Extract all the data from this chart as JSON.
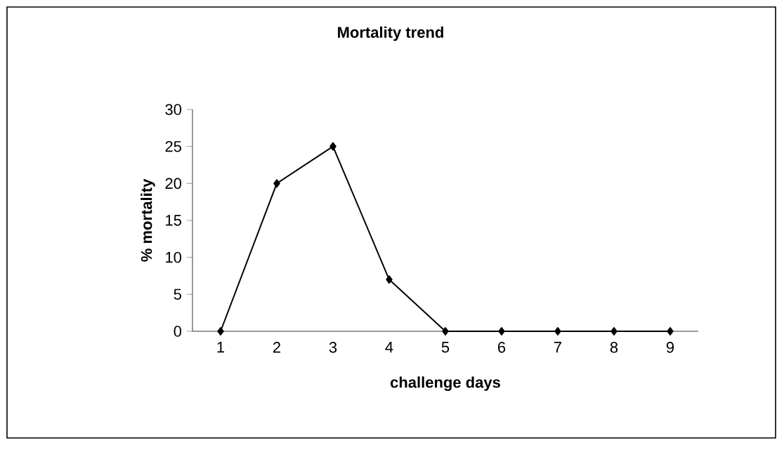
{
  "chart_data": {
    "type": "line",
    "title": "Mortality trend",
    "xlabel": "challenge days",
    "ylabel": "% mortality",
    "categories": [
      "1",
      "2",
      "3",
      "4",
      "5",
      "6",
      "7",
      "8",
      "9"
    ],
    "series": [
      {
        "color": "#000000",
        "values": [
          0,
          20,
          25,
          7,
          0,
          0,
          0,
          0,
          0
        ]
      }
    ],
    "ylim": [
      0,
      30
    ],
    "yticks": [
      0,
      5,
      10,
      15,
      20,
      25,
      30
    ],
    "marker": "diamond",
    "line_style": "solid"
  }
}
